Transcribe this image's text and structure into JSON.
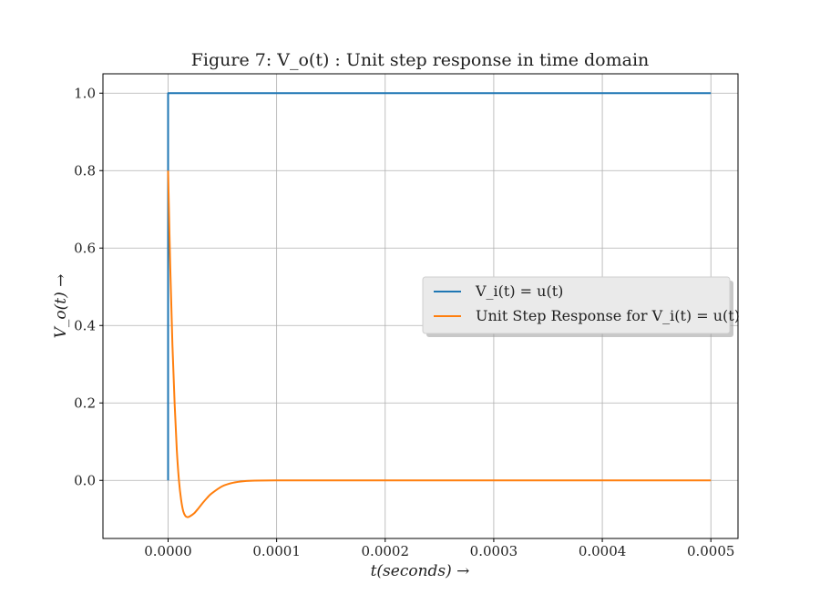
{
  "chart_data": {
    "type": "line",
    "title": "Figure 7: V_o(t) : Unit step response in time domain",
    "xlabel": "t(seconds) →",
    "ylabel": "V_o(t) →",
    "xlim": [
      -6e-05,
      0.000525
    ],
    "ylim": [
      -0.15,
      1.05
    ],
    "xticks": [
      0.0,
      0.0001,
      0.0002,
      0.0003,
      0.0004,
      0.0005
    ],
    "xtick_labels": [
      "0.0000",
      "0.0001",
      "0.0002",
      "0.0003",
      "0.0004",
      "0.0005"
    ],
    "yticks": [
      0.0,
      0.2,
      0.4,
      0.6,
      0.8,
      1.0
    ],
    "ytick_labels": [
      "0.0",
      "0.2",
      "0.4",
      "0.6",
      "0.8",
      "1.0"
    ],
    "grid": true,
    "legend_position": "center-right",
    "series": [
      {
        "name": "V_i(t) = u(t)",
        "color": "#1f77b4",
        "x": [
          0.0,
          0.0,
          0.0005
        ],
        "y": [
          0.0,
          1.0,
          1.0
        ]
      },
      {
        "name": "Unit Step Response for V_i(t) = u(t)",
        "color": "#ff7f0e",
        "x": [
          0.0,
          2e-06,
          4e-06,
          6e-06,
          8e-06,
          1e-05,
          1.2e-05,
          1.4e-05,
          1.6e-05,
          1.8e-05,
          2e-05,
          2.4e-05,
          2.8e-05,
          3.2e-05,
          3.6e-05,
          4e-05,
          5e-05,
          6e-05,
          7e-05,
          8e-05,
          0.0001,
          0.00012,
          0.0002,
          0.0003,
          0.0004,
          0.0005
        ],
        "y": [
          0.8,
          0.55,
          0.35,
          0.2,
          0.08,
          0.0,
          -0.05,
          -0.08,
          -0.092,
          -0.095,
          -0.093,
          -0.085,
          -0.072,
          -0.058,
          -0.045,
          -0.034,
          -0.015,
          -0.006,
          -0.002,
          -0.0005,
          0.0,
          0.0,
          0.0,
          0.0,
          0.0,
          0.0
        ]
      }
    ]
  }
}
